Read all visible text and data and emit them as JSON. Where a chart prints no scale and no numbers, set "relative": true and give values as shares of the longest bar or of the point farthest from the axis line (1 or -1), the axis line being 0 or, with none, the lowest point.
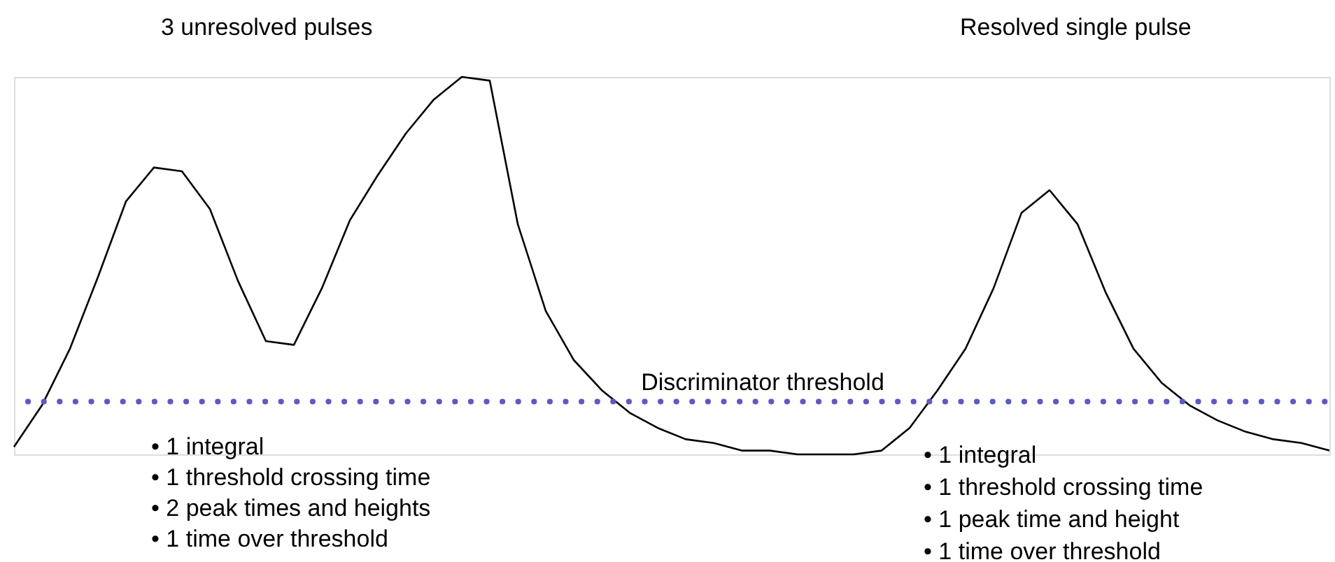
{
  "chart_data": {
    "type": "line",
    "relative": true,
    "color": "#000000",
    "line_style": "solid",
    "marker": "none",
    "tick_labels": false,
    "categories": [
      null,
      null,
      null,
      null,
      null,
      null,
      null,
      null,
      null,
      null,
      null,
      null,
      null,
      null,
      null,
      null,
      null,
      null,
      null,
      null,
      null,
      null,
      null,
      null,
      null,
      null,
      null,
      null,
      null,
      null,
      null,
      null,
      null,
      null,
      null,
      null,
      null,
      null,
      null,
      null,
      null,
      null,
      null,
      null,
      null,
      null,
      null,
      null
    ],
    "values": [
      0.02,
      0.13,
      0.28,
      0.47,
      0.67,
      0.76,
      0.75,
      0.65,
      0.46,
      0.3,
      0.29,
      0.44,
      0.62,
      0.74,
      0.85,
      0.94,
      1.0,
      0.99,
      0.61,
      0.38,
      0.25,
      0.17,
      0.11,
      0.07,
      0.04,
      0.03,
      0.01,
      0.01,
      0.0,
      0.0,
      0.0,
      0.01,
      0.07,
      0.17,
      0.28,
      0.44,
      0.64,
      0.7,
      0.61,
      0.43,
      0.28,
      0.19,
      0.13,
      0.09,
      0.06,
      0.04,
      0.03,
      0.01
    ],
    "ref_lines": [
      {
        "axis": "y",
        "value": 0.14,
        "label": "Discriminator threshold",
        "color": "#5b5bbf",
        "line_style": "dotted"
      }
    ],
    "annotations": [
      "3 unresolved pulses",
      "Resolved single pulse",
      "•  1 integral",
      "•  1 threshold crossing time",
      "•  2 peak times and heights",
      "•  1 time over threshold",
      "•  1 integral",
      "•  1 threshold crossing time",
      "•  1 peak time and height",
      "•  1 time over threshold"
    ]
  }
}
